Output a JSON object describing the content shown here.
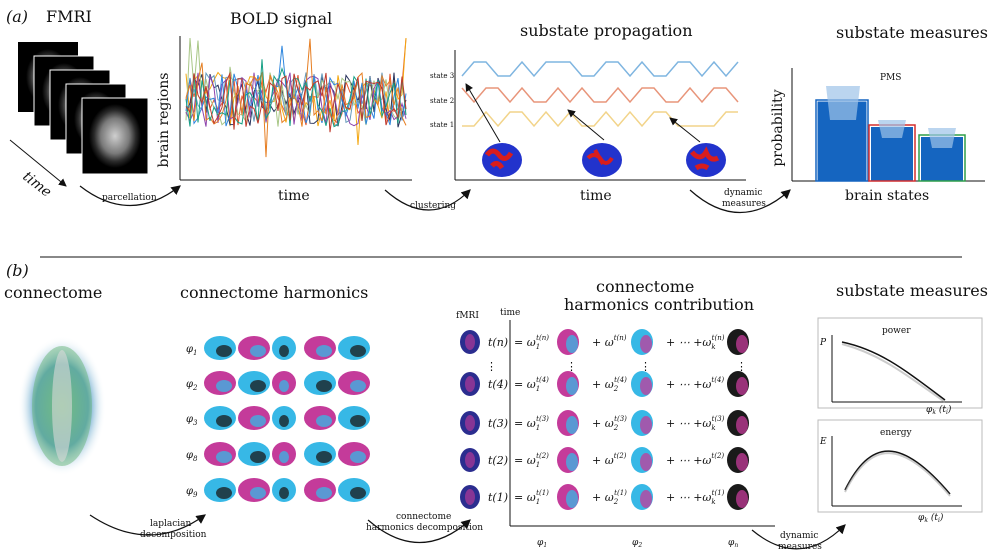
{
  "panel_a": {
    "tag": "(a)",
    "fmri_title": "FMRI",
    "time_label": "time",
    "parcellation": "parcellation",
    "bold_title": "BOLD signal",
    "bold_ylabel": "brain regions",
    "bold_xlabel": "time",
    "clustering": "clustering",
    "prop_title": "substate propagation",
    "state3": "state 3",
    "state2": "state 2",
    "state1": "state 1",
    "prop_xlabel": "time",
    "dynamic_measures": "dynamic measures",
    "measures_title": "substate measures",
    "pms": "PMS",
    "prob_ylabel": "probability",
    "brain_states": "brain states"
  },
  "panel_b": {
    "tag": "(b)",
    "connectome": "connectome",
    "harmonics_title": "connectome harmonics",
    "phi_labels": [
      "φ1",
      "φ2",
      "φ3",
      "φ8",
      "φ9"
    ],
    "laplacian": "laplacian decomposition",
    "harm_decomp_1": "connectome",
    "harm_decomp_2": "harmonics decomposition",
    "fmri": "fMRI",
    "time": "time",
    "contrib_title_1": "connectome",
    "contrib_title_2": "harmonics contribution",
    "rows": [
      {
        "t": "t(n)",
        "eq": "= ω1^t(n)  + ω^t(n)  + ⋯ +ωk^t(n)"
      },
      {
        "t": "t(4)",
        "eq": "= ω1^t(4)  + ω2^t(4)  + ⋯ +ω^t(4)"
      },
      {
        "t": "t(3)",
        "eq": "= ω1^t(3)  + ω2^t(3)  + ⋯ +ωk^t(3)"
      },
      {
        "t": "t(2)",
        "eq": "= ω1^t(2)  + ω^t(2)  + ⋯ +ω^t(2)"
      },
      {
        "t": "t(1)",
        "eq": "= ω1^t(1)  + ω2^t(1)  + ⋯ +ωk^t(1)"
      }
    ],
    "x_phi1": "φ1",
    "x_phi2": "φ2",
    "x_phin": "φn",
    "dynamic_measures": "dynamic measures",
    "measures_title": "substate measures",
    "power": "power",
    "energy": "energy",
    "P": "P",
    "E": "E",
    "phi_k": "φk (ti)"
  },
  "colors": {
    "blue_bar": "#1565c0",
    "state3": "#7fb5e0",
    "state2": "#e8957a",
    "state1": "#f2d48a",
    "magenta": "#c43b9a",
    "cyan": "#37b8e6"
  }
}
